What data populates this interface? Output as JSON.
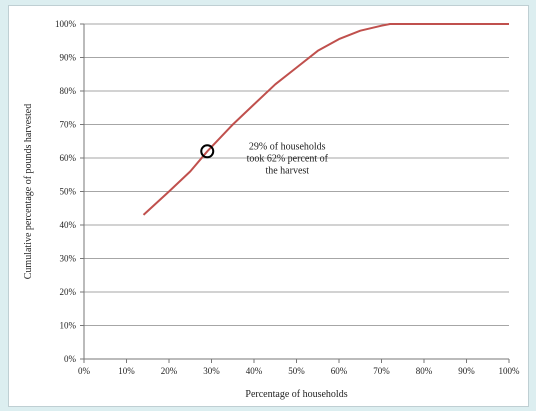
{
  "chart_data": {
    "type": "line",
    "xlabel": "Percentage of households",
    "ylabel": "Cumulative percentage of pounds harvested",
    "xlim": [
      0,
      100
    ],
    "ylim": [
      0,
      100
    ],
    "x_ticks": [
      "0%",
      "10%",
      "20%",
      "30%",
      "40%",
      "50%",
      "60%",
      "70%",
      "80%",
      "90%",
      "100%"
    ],
    "y_ticks": [
      "0%",
      "10%",
      "20%",
      "30%",
      "40%",
      "50%",
      "60%",
      "70%",
      "80%",
      "90%",
      "100%"
    ],
    "grid": "horizontal",
    "series": [
      {
        "color": "#c0504d",
        "x": [
          14,
          20,
          25,
          29,
          35,
          40,
          45,
          50,
          55,
          60,
          65,
          70,
          72,
          80,
          90,
          100
        ],
        "y": [
          43,
          50,
          56,
          62,
          70,
          76,
          82,
          87,
          92,
          95.5,
          98,
          99.5,
          100,
          100,
          100,
          100
        ]
      }
    ],
    "annotation": {
      "x": 29,
      "y": 62,
      "lines": [
        "29% of households",
        "took 62% percent of",
        "the harvest"
      ]
    }
  },
  "colors": {
    "line": "#c0504d",
    "grid": "#888888",
    "marker": "#000000"
  }
}
